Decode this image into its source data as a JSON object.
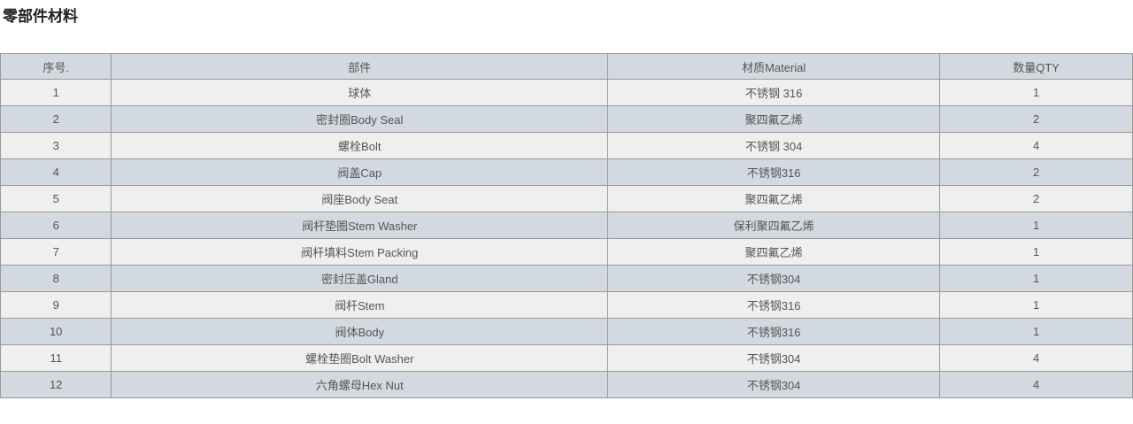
{
  "page": {
    "title": "零部件材料"
  },
  "table": {
    "columns": [
      {
        "label": "序号."
      },
      {
        "label": "部件"
      },
      {
        "label": "材质Material"
      },
      {
        "label": "数量QTY"
      }
    ],
    "rows": [
      {
        "no": "1",
        "part": "球体",
        "material": "不锈钢 316",
        "qty": "1"
      },
      {
        "no": "2",
        "part": "密封圈Body Seal",
        "material": "聚四氟乙烯",
        "qty": "2"
      },
      {
        "no": "3",
        "part": "螺栓Bolt",
        "material": "不锈钢 304",
        "qty": "4"
      },
      {
        "no": "4",
        "part": "阀盖Cap",
        "material": "不锈钢316",
        "qty": "2"
      },
      {
        "no": "5",
        "part": "阀座Body Seat",
        "material": "聚四氟乙烯",
        "qty": "2"
      },
      {
        "no": "6",
        "part": "阀杆垫圈Stem Washer",
        "material": "保利聚四氟乙烯",
        "qty": "1"
      },
      {
        "no": "7",
        "part": "阀杆填料Stem Packing",
        "material": "聚四氟乙烯",
        "qty": "1"
      },
      {
        "no": "8",
        "part": "密封压盖Gland",
        "material": "不锈钢304",
        "qty": "1"
      },
      {
        "no": "9",
        "part": "阀杆Stem",
        "material": "不锈钢316",
        "qty": "1"
      },
      {
        "no": "10",
        "part": "阀体Body",
        "material": "不锈钢316",
        "qty": "1"
      },
      {
        "no": "11",
        "part": "螺栓垫圈Bolt Washer",
        "material": "不锈钢304",
        "qty": "4"
      },
      {
        "no": "12",
        "part": "六角螺母Hex Nut",
        "material": "不锈钢304",
        "qty": "4"
      }
    ]
  },
  "colors": {
    "header_bg": "#d3d9e0",
    "row_even_bg": "#d3d9e0",
    "row_odd_bg": "#efefef",
    "border": "#999999",
    "text": "#555555",
    "title_text": "#222222"
  }
}
